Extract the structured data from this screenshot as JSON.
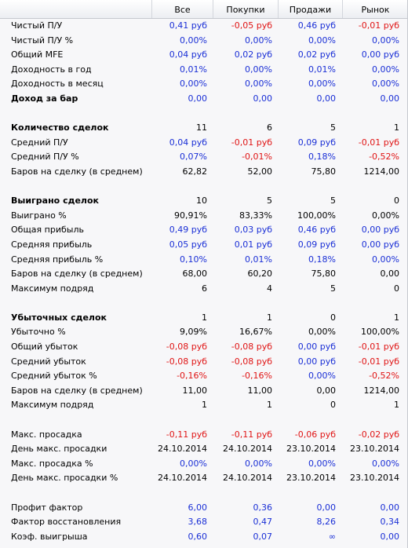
{
  "columns": [
    "Все",
    "Покупки",
    "Продажи",
    "Рынок"
  ],
  "rows": [
    {
      "label": "Чистый П/У",
      "bold": false,
      "values": [
        "0,41 руб",
        "-0,05 руб",
        "0,46 руб",
        "-0,01 руб"
      ],
      "colors": [
        "blue",
        "red",
        "blue",
        "red"
      ]
    },
    {
      "label": "Чистый П/У %",
      "bold": false,
      "values": [
        "0,00%",
        "0,00%",
        "0,00%",
        "0,00%"
      ],
      "colors": [
        "blue",
        "blue",
        "blue",
        "blue"
      ]
    },
    {
      "label": "Общий MFE",
      "bold": false,
      "values": [
        "0,04 руб",
        "0,02 руб",
        "0,02 руб",
        "0,00 руб"
      ],
      "colors": [
        "blue",
        "blue",
        "blue",
        "blue"
      ]
    },
    {
      "label": "Доходность в год",
      "bold": false,
      "values": [
        "0,01%",
        "0,00%",
        "0,01%",
        "0,00%"
      ],
      "colors": [
        "blue",
        "blue",
        "blue",
        "blue"
      ]
    },
    {
      "label": "Доходность в месяц",
      "bold": false,
      "values": [
        "0,00%",
        "0,00%",
        "0,00%",
        "0,00%"
      ],
      "colors": [
        "blue",
        "blue",
        "blue",
        "blue"
      ]
    },
    {
      "label": "Доход за бар",
      "bold": true,
      "values": [
        "0,00",
        "0,00",
        "0,00",
        "0,00"
      ],
      "colors": [
        "blue",
        "blue",
        "blue",
        "blue"
      ]
    },
    {
      "label": "",
      "bold": false,
      "values": [
        "",
        "",
        "",
        ""
      ],
      "colors": [
        "black",
        "black",
        "black",
        "black"
      ]
    },
    {
      "label": "Количество сделок",
      "bold": true,
      "values": [
        "11",
        "6",
        "5",
        "1"
      ],
      "colors": [
        "black",
        "black",
        "black",
        "black"
      ]
    },
    {
      "label": "Средний П/У",
      "bold": false,
      "values": [
        "0,04 руб",
        "-0,01 руб",
        "0,09 руб",
        "-0,01 руб"
      ],
      "colors": [
        "blue",
        "red",
        "blue",
        "red"
      ]
    },
    {
      "label": "Средний П/У %",
      "bold": false,
      "values": [
        "0,07%",
        "-0,01%",
        "0,18%",
        "-0,52%"
      ],
      "colors": [
        "blue",
        "red",
        "blue",
        "red"
      ]
    },
    {
      "label": "Баров на сделку (в среднем)",
      "bold": false,
      "values": [
        "62,82",
        "52,00",
        "75,80",
        "1214,00"
      ],
      "colors": [
        "black",
        "black",
        "black",
        "black"
      ]
    },
    {
      "label": "",
      "bold": false,
      "values": [
        "",
        "",
        "",
        ""
      ],
      "colors": [
        "black",
        "black",
        "black",
        "black"
      ]
    },
    {
      "label": "Выиграно сделок",
      "bold": true,
      "values": [
        "10",
        "5",
        "5",
        "0"
      ],
      "colors": [
        "black",
        "black",
        "black",
        "black"
      ]
    },
    {
      "label": "Выиграно %",
      "bold": false,
      "values": [
        "90,91%",
        "83,33%",
        "100,00%",
        "0,00%"
      ],
      "colors": [
        "black",
        "black",
        "black",
        "black"
      ]
    },
    {
      "label": "Общая прибыль",
      "bold": false,
      "values": [
        "0,49 руб",
        "0,03 руб",
        "0,46 руб",
        "0,00 руб"
      ],
      "colors": [
        "blue",
        "blue",
        "blue",
        "blue"
      ]
    },
    {
      "label": "Средняя прибыль",
      "bold": false,
      "values": [
        "0,05 руб",
        "0,01 руб",
        "0,09 руб",
        "0,00 руб"
      ],
      "colors": [
        "blue",
        "blue",
        "blue",
        "blue"
      ]
    },
    {
      "label": "Средняя прибыль %",
      "bold": false,
      "values": [
        "0,10%",
        "0,01%",
        "0,18%",
        "0,00%"
      ],
      "colors": [
        "blue",
        "blue",
        "blue",
        "blue"
      ]
    },
    {
      "label": "Баров на сделку (в среднем)",
      "bold": false,
      "values": [
        "68,00",
        "60,20",
        "75,80",
        "0,00"
      ],
      "colors": [
        "black",
        "black",
        "black",
        "black"
      ]
    },
    {
      "label": "Максимум подряд",
      "bold": false,
      "values": [
        "6",
        "4",
        "5",
        "0"
      ],
      "colors": [
        "black",
        "black",
        "black",
        "black"
      ]
    },
    {
      "label": "",
      "bold": false,
      "values": [
        "",
        "",
        "",
        ""
      ],
      "colors": [
        "black",
        "black",
        "black",
        "black"
      ]
    },
    {
      "label": "Убыточных сделок",
      "bold": true,
      "values": [
        "1",
        "1",
        "0",
        "1"
      ],
      "colors": [
        "black",
        "black",
        "black",
        "black"
      ]
    },
    {
      "label": "Убыточно %",
      "bold": false,
      "values": [
        "9,09%",
        "16,67%",
        "0,00%",
        "100,00%"
      ],
      "colors": [
        "black",
        "black",
        "black",
        "black"
      ]
    },
    {
      "label": "Общий убыток",
      "bold": false,
      "values": [
        "-0,08 руб",
        "-0,08 руб",
        "0,00 руб",
        "-0,01 руб"
      ],
      "colors": [
        "red",
        "red",
        "blue",
        "red"
      ]
    },
    {
      "label": "Средний убыток",
      "bold": false,
      "values": [
        "-0,08 руб",
        "-0,08 руб",
        "0,00 руб",
        "-0,01 руб"
      ],
      "colors": [
        "red",
        "red",
        "blue",
        "red"
      ]
    },
    {
      "label": "Средний убыток %",
      "bold": false,
      "values": [
        "-0,16%",
        "-0,16%",
        "0,00%",
        "-0,52%"
      ],
      "colors": [
        "red",
        "red",
        "blue",
        "red"
      ]
    },
    {
      "label": "Баров на сделку (в среднем)",
      "bold": false,
      "values": [
        "11,00",
        "11,00",
        "0,00",
        "1214,00"
      ],
      "colors": [
        "black",
        "black",
        "black",
        "black"
      ]
    },
    {
      "label": "Максимум подряд",
      "bold": false,
      "values": [
        "1",
        "1",
        "0",
        "1"
      ],
      "colors": [
        "black",
        "black",
        "black",
        "black"
      ]
    },
    {
      "label": "",
      "bold": false,
      "values": [
        "",
        "",
        "",
        ""
      ],
      "colors": [
        "black",
        "black",
        "black",
        "black"
      ]
    },
    {
      "label": "Макс. просадка",
      "bold": false,
      "values": [
        "-0,11 руб",
        "-0,11 руб",
        "-0,06 руб",
        "-0,02 руб"
      ],
      "colors": [
        "red",
        "red",
        "red",
        "red"
      ]
    },
    {
      "label": "День макс. просадки",
      "bold": false,
      "values": [
        "24.10.2014",
        "24.10.2014",
        "23.10.2014",
        "23.10.2014"
      ],
      "colors": [
        "black",
        "black",
        "black",
        "black"
      ]
    },
    {
      "label": "Макс. просадка %",
      "bold": false,
      "values": [
        "0,00%",
        "0,00%",
        "0,00%",
        "0,00%"
      ],
      "colors": [
        "blue",
        "blue",
        "blue",
        "blue"
      ]
    },
    {
      "label": "День макс. просадки %",
      "bold": false,
      "values": [
        "24.10.2014",
        "24.10.2014",
        "23.10.2014",
        "23.10.2014"
      ],
      "colors": [
        "black",
        "black",
        "black",
        "black"
      ]
    },
    {
      "label": "",
      "bold": false,
      "values": [
        "",
        "",
        "",
        ""
      ],
      "colors": [
        "black",
        "black",
        "black",
        "black"
      ]
    },
    {
      "label": "Профит фактор",
      "bold": false,
      "values": [
        "6,00",
        "0,36",
        "0,00",
        "0,00"
      ],
      "colors": [
        "blue",
        "blue",
        "blue",
        "blue"
      ]
    },
    {
      "label": "Фактор восстановления",
      "bold": false,
      "values": [
        "3,68",
        "0,47",
        "8,26",
        "0,34"
      ],
      "colors": [
        "blue",
        "blue",
        "blue",
        "blue"
      ]
    },
    {
      "label": "Коэф. выигрыша",
      "bold": false,
      "values": [
        "0,60",
        "0,07",
        "∞",
        "0,00"
      ],
      "colors": [
        "blue",
        "blue",
        "blue",
        "blue"
      ]
    }
  ]
}
